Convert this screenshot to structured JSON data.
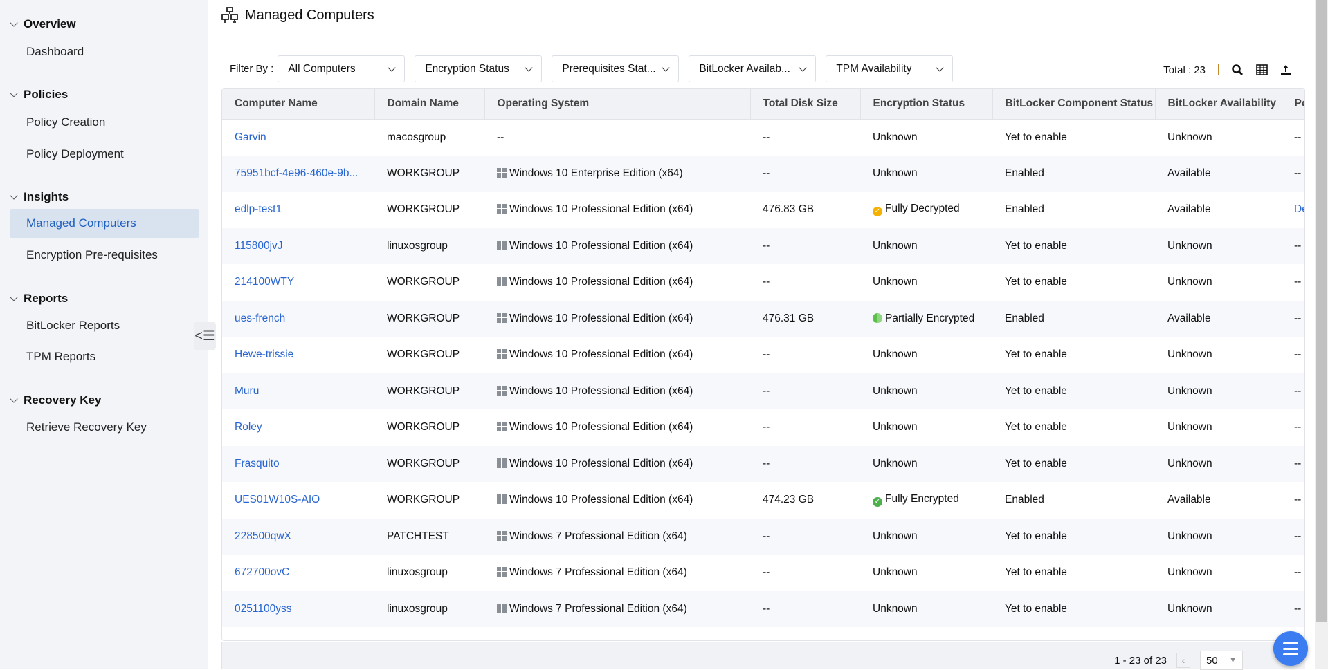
{
  "sidebar": {
    "sections": [
      {
        "label": "Overview",
        "items": [
          "Dashboard"
        ]
      },
      {
        "label": "Policies",
        "items": [
          "Policy Creation",
          "Policy Deployment"
        ]
      },
      {
        "label": "Insights",
        "items": [
          "Managed Computers",
          "Encryption Pre-requisites"
        ]
      },
      {
        "label": "Reports",
        "items": [
          "BitLocker Reports",
          "TPM Reports"
        ]
      },
      {
        "label": "Recovery Key",
        "items": [
          "Retrieve Recovery Key"
        ]
      }
    ],
    "active": "Managed Computers"
  },
  "header": {
    "title": "Managed Computers"
  },
  "filters": {
    "label": "Filter By :",
    "dropdowns": [
      "All Computers",
      "Encryption Status",
      "Prerequisites Stat...",
      "BitLocker Availab...",
      "TPM Availability"
    ]
  },
  "toolbar": {
    "total": "Total : 23"
  },
  "table": {
    "columns": [
      "Computer Name",
      "Domain Name",
      "Operating System",
      "Total Disk Size",
      "Encryption Status",
      "BitLocker Component Status",
      "BitLocker Availability",
      "Po"
    ],
    "rows": [
      [
        "Garvin",
        "macosgroup",
        "--",
        "--",
        "Unknown",
        "Yet to enable",
        "Unknown",
        "--"
      ],
      [
        "75951bcf-4e96-460e-9b...",
        "WORKGROUP",
        "Windows 10 Enterprise Edition (x64)",
        "--",
        "Unknown",
        "Enabled",
        "Available",
        "--"
      ],
      [
        "edlp-test1",
        "WORKGROUP",
        "Windows 10 Professional Edition (x64)",
        "476.83 GB",
        "Fully Decrypted",
        "Enabled",
        "Available",
        "De"
      ],
      [
        "115800jvJ",
        "linuxosgroup",
        "Windows 10 Professional Edition (x64)",
        "--",
        "Unknown",
        "Yet to enable",
        "Unknown",
        "--"
      ],
      [
        "214100WTY",
        "WORKGROUP",
        "Windows 10 Professional Edition (x64)",
        "--",
        "Unknown",
        "Yet to enable",
        "Unknown",
        "--"
      ],
      [
        "ues-french",
        "WORKGROUP",
        "Windows 10 Professional Edition (x64)",
        "476.31 GB",
        "Partially Encrypted",
        "Enabled",
        "Available",
        "--"
      ],
      [
        "Hewe-trissie",
        "WORKGROUP",
        "Windows 10 Professional Edition (x64)",
        "--",
        "Unknown",
        "Yet to enable",
        "Unknown",
        "--"
      ],
      [
        "Muru",
        "WORKGROUP",
        "Windows 10 Professional Edition (x64)",
        "--",
        "Unknown",
        "Yet to enable",
        "Unknown",
        "--"
      ],
      [
        "Roley",
        "WORKGROUP",
        "Windows 10 Professional Edition (x64)",
        "--",
        "Unknown",
        "Yet to enable",
        "Unknown",
        "--"
      ],
      [
        "Frasquito",
        "WORKGROUP",
        "Windows 10 Professional Edition (x64)",
        "--",
        "Unknown",
        "Yet to enable",
        "Unknown",
        "--"
      ],
      [
        "UES01W10S-AIO",
        "WORKGROUP",
        "Windows 10 Professional Edition (x64)",
        "474.23 GB",
        "Fully Encrypted",
        "Enabled",
        "Available",
        "--"
      ],
      [
        "228500qwX",
        "PATCHTEST",
        "Windows 7 Professional Edition (x64)",
        "--",
        "Unknown",
        "Yet to enable",
        "Unknown",
        "--"
      ],
      [
        "672700ovC",
        "linuxosgroup",
        "Windows 7 Professional Edition (x64)",
        "--",
        "Unknown",
        "Yet to enable",
        "Unknown",
        "--"
      ],
      [
        "0251100yss",
        "linuxosgroup",
        "Windows 7 Professional Edition (x64)",
        "--",
        "Unknown",
        "Yet to enable",
        "Unknown",
        "--"
      ]
    ]
  },
  "status_colors": {
    "Fully Decrypted": "#f5b100",
    "Partially Encrypted": "#5cbf4a",
    "Fully Encrypted": "#4cb04c"
  },
  "pager": {
    "range": "1 - 23 of 23",
    "page_size": "50"
  }
}
